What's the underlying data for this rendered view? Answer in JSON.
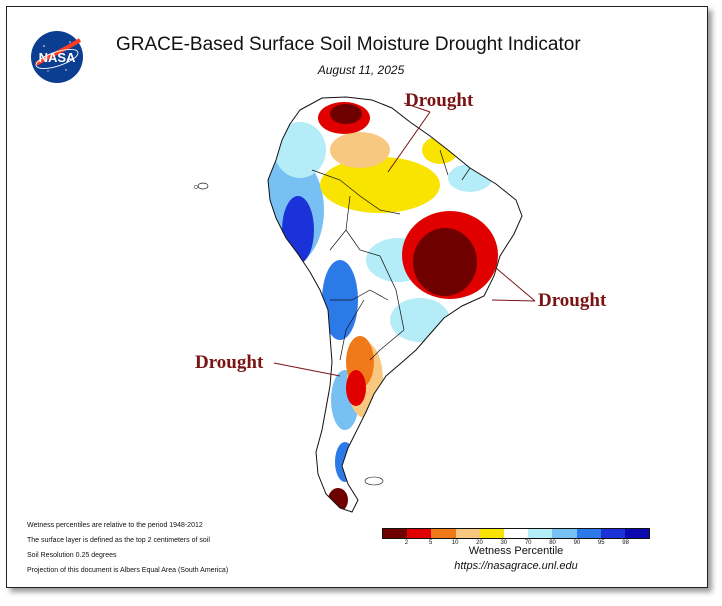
{
  "header": {
    "title": "GRACE-Based Surface Soil Moisture Drought Indicator",
    "date": "August 11, 2025",
    "logo_text": "NASA"
  },
  "map": {
    "region": "South America",
    "callouts": [
      "Drought",
      "Drought",
      "Drought"
    ]
  },
  "notes": [
    "Wetness percentiles are relative to the period 1948-2012",
    "The surface layer is defined as the top 2 centimeters of soil",
    "Soil Resolution 0.25 degrees",
    "Projection of this document is Albers Equal Area (South America)"
  ],
  "legend": {
    "title": "Wetness Percentile",
    "ticks": [
      "2",
      "5",
      "10",
      "20",
      "30",
      "70",
      "80",
      "90",
      "95",
      "98"
    ],
    "colors": [
      "#6e0000",
      "#e00000",
      "#f07a1a",
      "#f8c880",
      "#f8e400",
      "#ffffff",
      "#b4ecf8",
      "#78c0f4",
      "#2c7ae8",
      "#1a32d8",
      "#0a0ab0"
    ]
  },
  "footer": {
    "url": "https://nasagrace.unl.edu"
  }
}
